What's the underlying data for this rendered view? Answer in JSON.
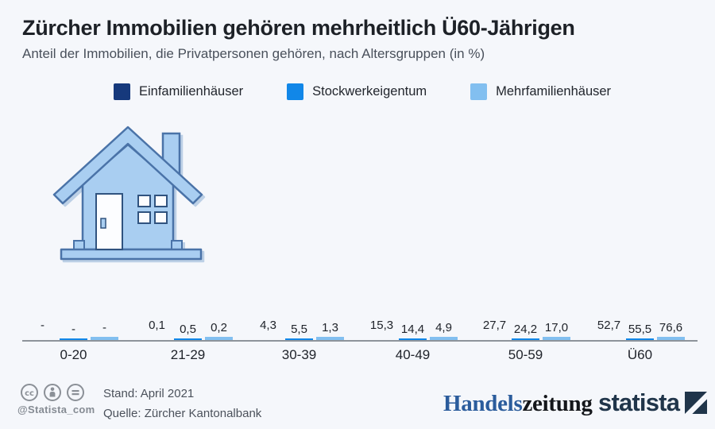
{
  "header": {
    "title": "Zürcher Immobilien gehören mehrheitlich Ü60-Jährigen",
    "subtitle": "Anteil der Immobilien, die Privatpersonen gehören, nach Altersgruppen (in %)"
  },
  "legend": [
    {
      "label": "Einfamilienhäuser",
      "color": "#16397c"
    },
    {
      "label": "Stockwerkeigentum",
      "color": "#1187e8"
    },
    {
      "label": "Mehrfamilienhäuser",
      "color": "#82bff0"
    }
  ],
  "chart_data": {
    "type": "bar",
    "title": "Zürcher Immobilien gehören mehrheitlich Ü60-Jährigen",
    "subtitle": "Anteil der Immobilien, die Privatpersonen gehören, nach Altersgruppen (in %)",
    "unit": "%",
    "categories": [
      "0-20",
      "21-29",
      "30-39",
      "40-49",
      "50-59",
      "Ü60"
    ],
    "series": [
      {
        "name": "Einfamilienhäuser",
        "color": "#16397c",
        "values": [
          null,
          0.1,
          4.3,
          15.3,
          27.7,
          52.7
        ]
      },
      {
        "name": "Stockwerkeigentum",
        "color": "#1187e8",
        "values": [
          null,
          0.5,
          5.5,
          14.4,
          24.2,
          55.5
        ]
      },
      {
        "name": "Mehrfamilienhäuser",
        "color": "#82bff0",
        "values": [
          null,
          0.2,
          1.3,
          4.9,
          17.0,
          76.6
        ]
      }
    ],
    "value_labels": [
      [
        "-",
        "-",
        "-"
      ],
      [
        "0,1",
        "0,5",
        "0,2"
      ],
      [
        "4,3",
        "5,5",
        "1,3"
      ],
      [
        "15,3",
        "14,4",
        "4,9"
      ],
      [
        "27,7",
        "24,2",
        "17,0"
      ],
      [
        "52,7",
        "55,5",
        "76,6"
      ]
    ],
    "null_display": "-",
    "ylim": [
      0,
      80
    ],
    "grid": false,
    "legend_position": "top"
  },
  "footer": {
    "handle": "@Statista_com",
    "stand": "Stand: April 2021",
    "quelle": "Quelle: Zürcher Kantonalbank",
    "brand_left_part1": "Handels",
    "brand_left_part2": "zeitung",
    "brand_right": "statista"
  },
  "colors": {
    "background": "#f5f7fb",
    "baseline": "#8e949b",
    "title_text": "#1d2127",
    "house_fill": "#a9cef1",
    "house_outline": "#4a73a8",
    "handelszeitung_blue": "#2b5c9c",
    "statista_navy": "#20354a"
  }
}
